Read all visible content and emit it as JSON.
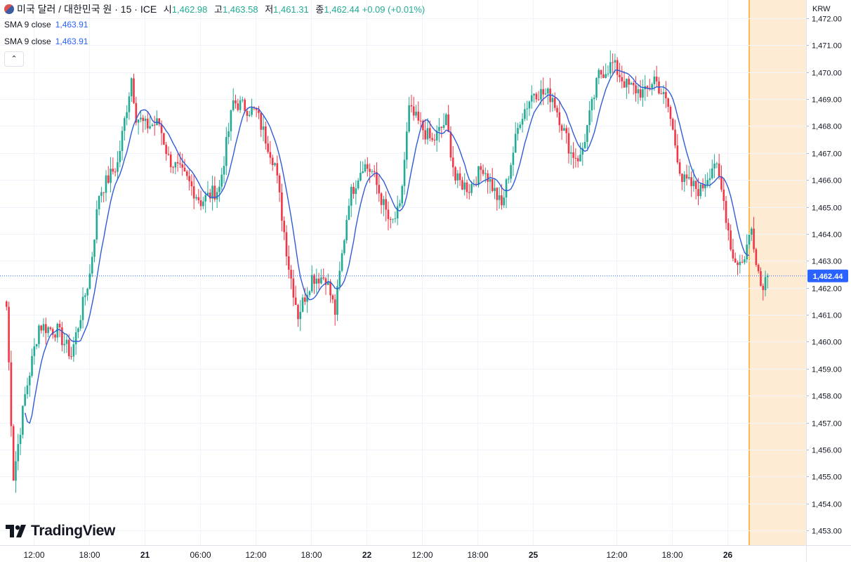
{
  "header": {
    "flag_icon": "us-flag-icon",
    "title": "미국 달러 / 대한민국 원 · 15 · ICE",
    "open_label": "시",
    "open_value": "1,462.98",
    "high_label": "고",
    "high_value": "1,463.58",
    "low_label": "저",
    "low_value": "1,461.31",
    "close_label": "종",
    "close_value": "1,462.44",
    "change": "+0.09 (+0.01%)"
  },
  "indicators": [
    {
      "label": "SMA 9 close",
      "value": "1,463.91"
    },
    {
      "label": "SMA 9 close",
      "value": "1,463.91"
    }
  ],
  "collapse_icon": "chevron-up-icon",
  "currency_label": "KRW",
  "price_badge": "1,462.44",
  "logo_text": "TradingView",
  "colors": {
    "up": "#22ab94",
    "down": "#f23645",
    "sma": "#2f5bd8",
    "price_line": "#2962ff",
    "session": "#fdebd3",
    "session_border": "#f5a623"
  },
  "chart_data": {
    "type": "candlestick",
    "ylim": [
      1452.7,
      1472.3
    ],
    "y_ticks": [
      "1,472.00",
      "1,471.00",
      "1,470.00",
      "1,469.00",
      "1,468.00",
      "1,467.00",
      "1,466.00",
      "1,465.00",
      "1,464.00",
      "1,463.00",
      "1,462.00",
      "1,461.00",
      "1,460.00",
      "1,459.00",
      "1,458.00",
      "1,457.00",
      "1,456.00",
      "1,455.00",
      "1,454.00",
      "1,453.00"
    ],
    "y_tick_values": [
      1472,
      1471,
      1470,
      1469,
      1468,
      1467,
      1466,
      1465,
      1464,
      1463,
      1462,
      1461,
      1460,
      1459,
      1458,
      1457,
      1456,
      1455,
      1454,
      1453
    ],
    "x_ticks": [
      {
        "label": "12:00",
        "bar": 12,
        "bold": false
      },
      {
        "label": "18:00",
        "bar": 36,
        "bold": false
      },
      {
        "label": "21",
        "bar": 60,
        "bold": true
      },
      {
        "label": "06:00",
        "bar": 84,
        "bold": false
      },
      {
        "label": "12:00",
        "bar": 108,
        "bold": false
      },
      {
        "label": "18:00",
        "bar": 132,
        "bold": false
      },
      {
        "label": "22",
        "bar": 156,
        "bold": true
      },
      {
        "label": "12:00",
        "bar": 180,
        "bold": false
      },
      {
        "label": "18:00",
        "bar": 204,
        "bold": false
      },
      {
        "label": "25",
        "bar": 228,
        "bold": true
      },
      {
        "label": "12:00",
        "bar": 264,
        "bold": false
      },
      {
        "label": "18:00",
        "bar": 288,
        "bold": false
      },
      {
        "label": "26",
        "bar": 312,
        "bold": true
      }
    ],
    "bar_count": 330,
    "last_price": 1462.44,
    "session_start_bar": 322,
    "anchors": [
      [
        0,
        1461.3
      ],
      [
        3,
        1455.0
      ],
      [
        8,
        1458.0
      ],
      [
        14,
        1460.6
      ],
      [
        22,
        1460.4
      ],
      [
        28,
        1459.5
      ],
      [
        36,
        1462.5
      ],
      [
        40,
        1465.5
      ],
      [
        48,
        1466.6
      ],
      [
        54,
        1469.8
      ],
      [
        56,
        1468.4
      ],
      [
        60,
        1468.0
      ],
      [
        66,
        1468.1
      ],
      [
        70,
        1466.8
      ],
      [
        78,
        1466.0
      ],
      [
        84,
        1465.2
      ],
      [
        92,
        1465.7
      ],
      [
        98,
        1468.9
      ],
      [
        108,
        1468.5
      ],
      [
        116,
        1466.6
      ],
      [
        122,
        1462.8
      ],
      [
        126,
        1461.0
      ],
      [
        132,
        1462.4
      ],
      [
        138,
        1462.4
      ],
      [
        142,
        1461.1
      ],
      [
        148,
        1465.3
      ],
      [
        154,
        1466.6
      ],
      [
        158,
        1466.3
      ],
      [
        166,
        1464.3
      ],
      [
        170,
        1464.9
      ],
      [
        174,
        1468.6
      ],
      [
        184,
        1467.4
      ],
      [
        190,
        1468.2
      ],
      [
        194,
        1466.0
      ],
      [
        200,
        1465.7
      ],
      [
        206,
        1466.5
      ],
      [
        214,
        1465.0
      ],
      [
        222,
        1468.3
      ],
      [
        228,
        1469.3
      ],
      [
        236,
        1469.1
      ],
      [
        244,
        1467.0
      ],
      [
        248,
        1466.8
      ],
      [
        256,
        1469.9
      ],
      [
        262,
        1470.3
      ],
      [
        268,
        1469.5
      ],
      [
        276,
        1469.2
      ],
      [
        280,
        1469.8
      ],
      [
        286,
        1468.7
      ],
      [
        292,
        1466.0
      ],
      [
        300,
        1465.6
      ],
      [
        306,
        1466.7
      ],
      [
        310,
        1465.2
      ],
      [
        314,
        1463.1
      ],
      [
        318,
        1462.9
      ],
      [
        322,
        1464.2
      ],
      [
        326,
        1462.1
      ],
      [
        329,
        1462.44
      ]
    ]
  }
}
